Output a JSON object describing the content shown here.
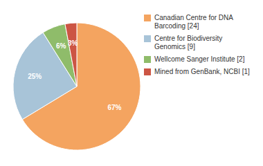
{
  "chart_data": {
    "type": "pie",
    "categories": [
      "Canadian Centre for DNA\nBarcoding [24]",
      "Centre for Biodiversity\nGenomics [9]",
      "Wellcome Sanger Institute [2]",
      "Mined from GenBank, NCBI [1]"
    ],
    "values": [
      67,
      25,
      6,
      3
    ],
    "value_labels": [
      "67%",
      "25%",
      "6%",
      "3%"
    ],
    "colors": [
      "#F4A460",
      "#A8C4D8",
      "#8FBC6A",
      "#CC5544"
    ],
    "data_labels": true,
    "legend": "right"
  }
}
